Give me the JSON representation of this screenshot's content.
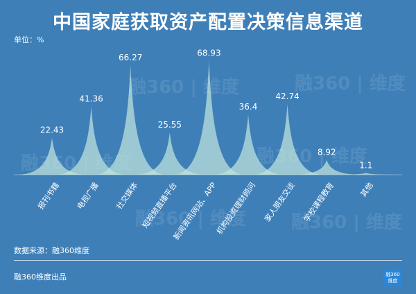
{
  "title": "中国家庭获取资产配置决策信息渠道",
  "unit_label": "单位：%",
  "source": "数据来源：融360维度",
  "footer": "融360维度出品",
  "logo": {
    "line1": "融360",
    "line2": "维度"
  },
  "watermark": "融360 | 维度",
  "colors": {
    "background": "#3e7fb8",
    "peak_fill": "#bfe4dc",
    "text": "#ffffff"
  },
  "chart_data": {
    "type": "area",
    "title": "中国家庭获取资产配置决策信息渠道",
    "ylabel": "单位：%",
    "categories": [
      "报刊书籍",
      "电视广播",
      "社交媒体",
      "短视频直播平台",
      "新闻资讯网站、APP",
      "机构投资理财顾问",
      "家人朋友交谈",
      "学校课程教育",
      "其他"
    ],
    "values": [
      22.43,
      41.36,
      66.27,
      25.55,
      68.93,
      36.4,
      42.74,
      8.92,
      1.1
    ],
    "value_labels": [
      "22.43",
      "41.36",
      "66.27",
      "25.55",
      "68.93",
      "36.4",
      "42.74",
      "8.92",
      "1.1"
    ],
    "ylim": [
      0,
      70
    ],
    "grid": false,
    "legend": "none"
  }
}
